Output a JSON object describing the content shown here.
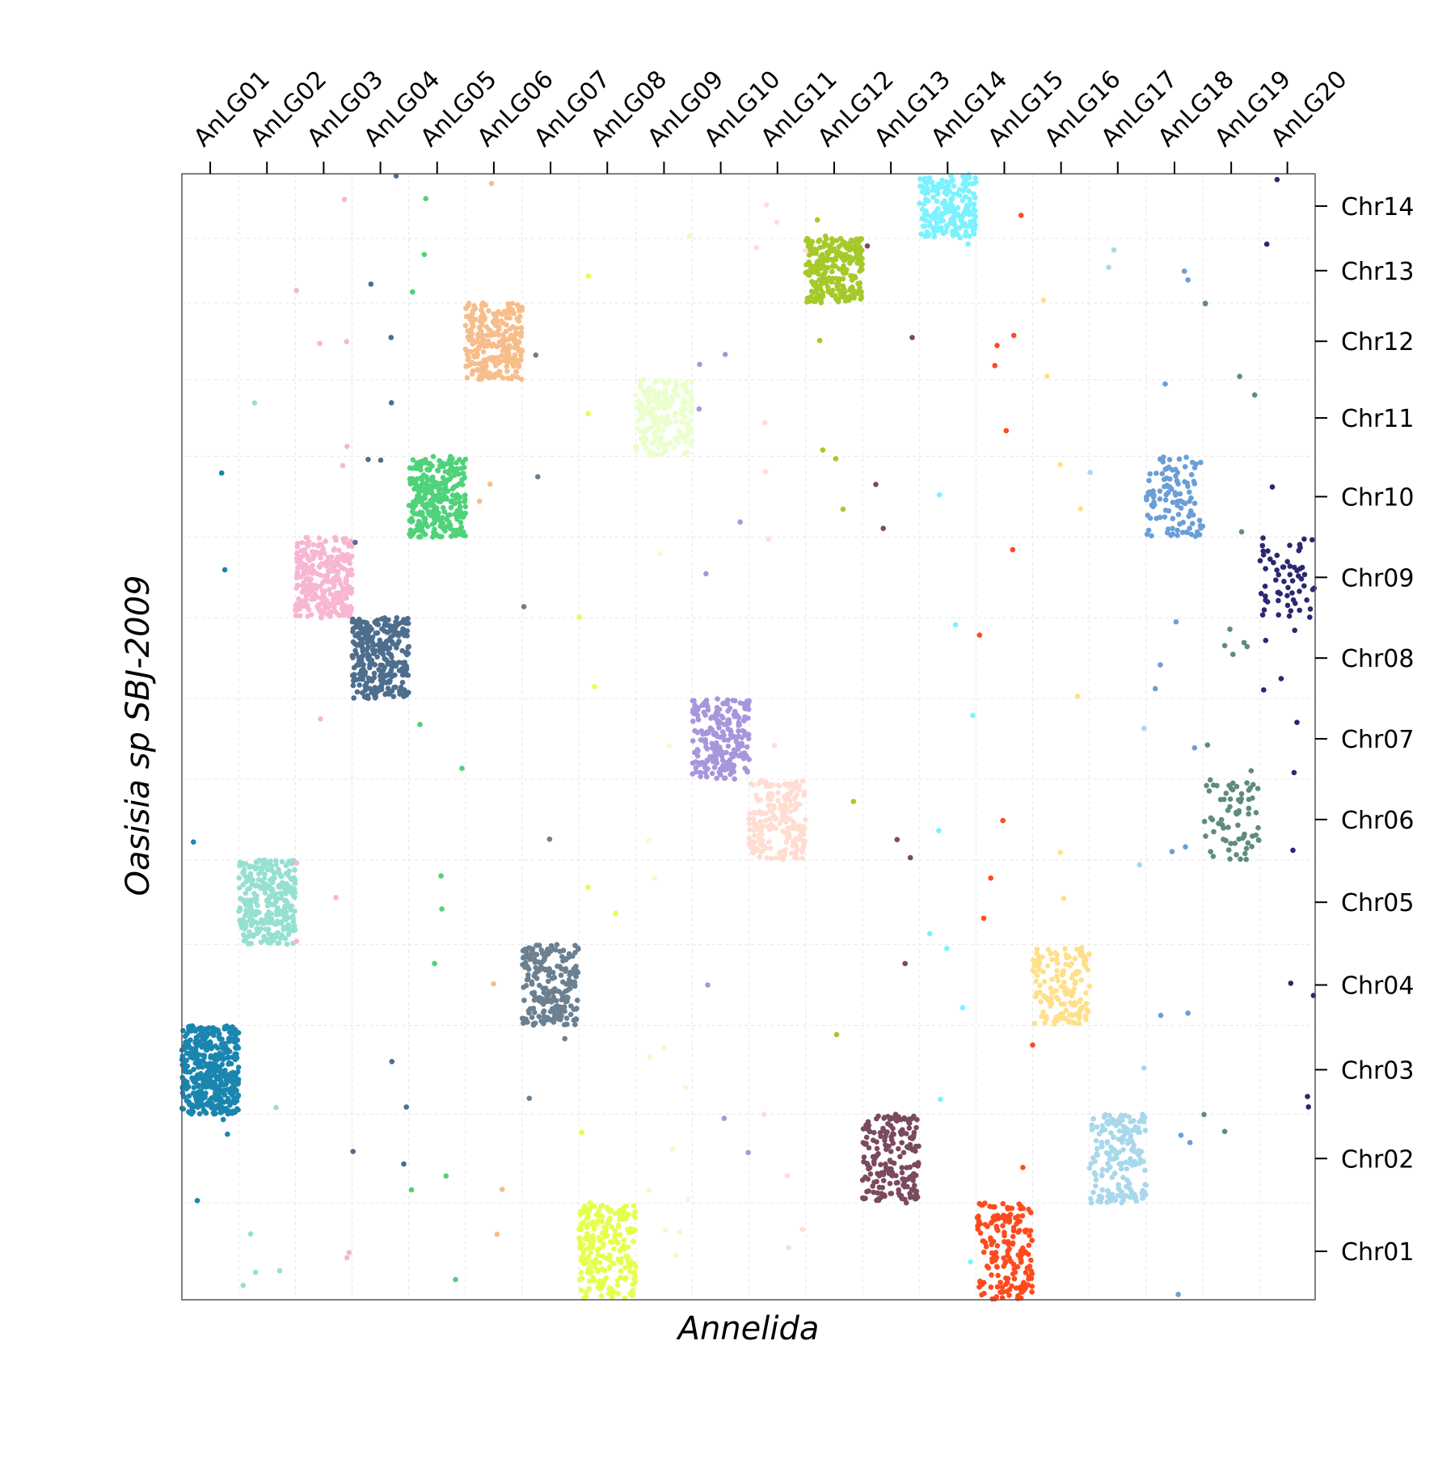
{
  "chart_data": {
    "type": "scatter",
    "title": "",
    "xlabel": "Annelida",
    "ylabel": "Oasisia sp SBJ-2009",
    "x_ticks_position": "top",
    "y_ticks_position": "right",
    "grid": true,
    "legend": "none",
    "x_categories": [
      "AnLG01",
      "AnLG02",
      "AnLG03",
      "AnLG04",
      "AnLG05",
      "AnLG06",
      "AnLG07",
      "AnLG08",
      "AnLG09",
      "AnLG10",
      "AnLG11",
      "AnLG12",
      "AnLG13",
      "AnLG14",
      "AnLG15",
      "AnLG16",
      "AnLG17",
      "AnLG18",
      "AnLG19",
      "AnLG20"
    ],
    "y_categories": [
      "Chr01",
      "Chr02",
      "Chr03",
      "Chr04",
      "Chr05",
      "Chr06",
      "Chr07",
      "Chr08",
      "Chr09",
      "Chr10",
      "Chr11",
      "Chr12",
      "Chr13",
      "Chr14"
    ],
    "x_segment_sizes": [
      1.0,
      1.0,
      1.0,
      1.0,
      1.0,
      1.0,
      1.0,
      1.0,
      1.0,
      1.0,
      1.0,
      1.0,
      1.0,
      1.0,
      1.0,
      1.0,
      1.0,
      1.0,
      1.0,
      0.98
    ],
    "y_segment_sizes": [
      1.2,
      1.1,
      1.1,
      1.0,
      1.05,
      1.0,
      1.0,
      1.0,
      1.0,
      1.0,
      0.95,
      0.95,
      0.8,
      0.8
    ],
    "series_colors": [
      "#1a86b0",
      "#96e0d2",
      "#f7b6d2",
      "#4e6e8e",
      "#4fd27a",
      "#f7bd8a",
      "#6b8090",
      "#e5ff4c",
      "#eaffcc",
      "#a896dc",
      "#ffddd2",
      "#a6c92a",
      "#7a4a5e",
      "#7af2ff",
      "#ff4a1e",
      "#ffe08a",
      "#a8d8ea",
      "#6a9fd6",
      "#5e8c7c",
      "#2a2870"
    ],
    "blocks": [
      {
        "x_category": "AnLG01",
        "y_category": "Chr03",
        "points": 420
      },
      {
        "x_category": "AnLG02",
        "y_category": "Chr05",
        "points": 300
      },
      {
        "x_category": "AnLG03",
        "y_category": "Chr09",
        "points": 300
      },
      {
        "x_category": "AnLG04",
        "y_category": "Chr08",
        "points": 300
      },
      {
        "x_category": "AnLG05",
        "y_category": "Chr10",
        "points": 300
      },
      {
        "x_category": "AnLG06",
        "y_category": "Chr12",
        "points": 260
      },
      {
        "x_category": "AnLG07",
        "y_category": "Chr04",
        "points": 220
      },
      {
        "x_category": "AnLG08",
        "y_category": "Chr01",
        "points": 220
      },
      {
        "x_category": "AnLG09",
        "y_category": "Chr11",
        "points": 200
      },
      {
        "x_category": "AnLG10",
        "y_category": "Chr07",
        "points": 220
      },
      {
        "x_category": "AnLG11",
        "y_category": "Chr06",
        "points": 200
      },
      {
        "x_category": "AnLG12",
        "y_category": "Chr13",
        "points": 260
      },
      {
        "x_category": "AnLG13",
        "y_category": "Chr02",
        "points": 190
      },
      {
        "x_category": "AnLG14",
        "y_category": "Chr14",
        "points": 200
      },
      {
        "x_category": "AnLG15",
        "y_category": "Chr01",
        "points": 180
      },
      {
        "x_category": "AnLG16",
        "y_category": "Chr04",
        "points": 150
      },
      {
        "x_category": "AnLG17",
        "y_category": "Chr02",
        "points": 180
      },
      {
        "x_category": "AnLG18",
        "y_category": "Chr10",
        "points": 110
      },
      {
        "x_category": "AnLG19",
        "y_category": "Chr06",
        "points": 70
      },
      {
        "x_category": "AnLG20",
        "y_category": "Chr09",
        "points": 60
      }
    ]
  }
}
